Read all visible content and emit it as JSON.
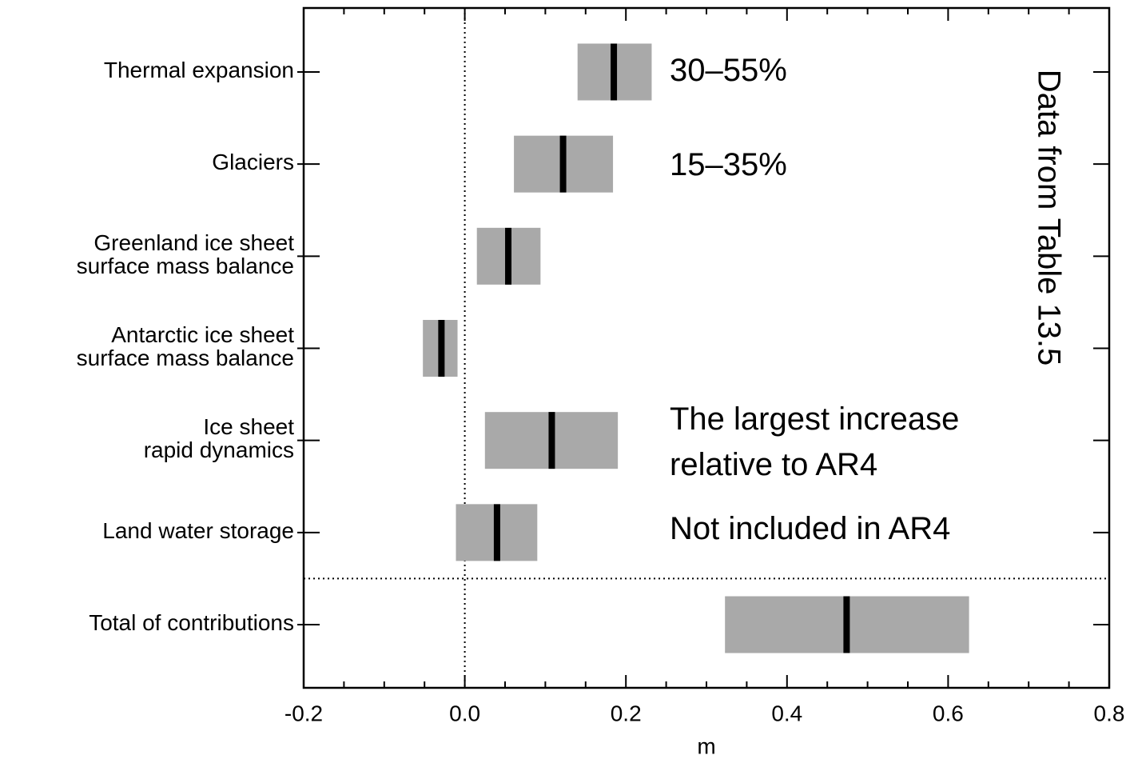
{
  "chart_data": {
    "type": "range_bar",
    "categories": [
      "Thermal expansion",
      "Glaciers",
      "Greenland ice sheet\nsurface mass balance",
      "Antarctic ice sheet\nsurface mass balance",
      "Ice sheet\nrapid dynamics",
      "Land water storage",
      "Total of contributions"
    ],
    "low": [
      0.14,
      0.061,
      0.015,
      -0.052,
      0.025,
      -0.011,
      0.323
    ],
    "median": [
      0.185,
      0.122,
      0.054,
      -0.029,
      0.108,
      0.04,
      0.474
    ],
    "high": [
      0.232,
      0.184,
      0.094,
      -0.009,
      0.19,
      0.09,
      0.626
    ],
    "color": "#a9a9a9",
    "median_color": "#000000",
    "xlim": [
      -0.2,
      0.8
    ],
    "xticks": [
      -0.2,
      {
        "value": 0,
        "label": "0.0"
      },
      0.2,
      0.4,
      0.6,
      0.8
    ],
    "xlabel": "m",
    "annotations": [
      "30–55%",
      "15–35%",
      "The largest increase\nrelative to AR4",
      "Not included in AR4",
      "Data from Table 13.5"
    ]
  }
}
